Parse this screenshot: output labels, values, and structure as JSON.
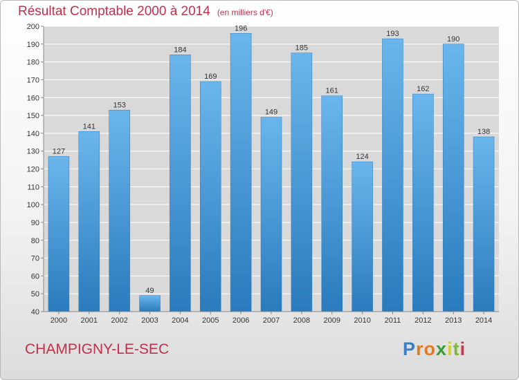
{
  "title": {
    "main": "Résultat Comptable 2000 à 2014",
    "unit": "(en milliers d'€)"
  },
  "commune": "CHAMPIGNY-LE-SEC",
  "logo": {
    "letters": [
      "P",
      "r",
      "o",
      "x",
      "i",
      "t",
      "i"
    ],
    "colors": [
      "#3a7fc4",
      "#e07b23",
      "#e07b23",
      "#3a9a3a",
      "#d4cc2a",
      "#7fb93c",
      "#cc3344"
    ]
  },
  "colors": {
    "bar": "#3d9bde",
    "bar_light": "#6ab6ec",
    "bar_dark": "#2a7bbd",
    "title": "#c0304a"
  },
  "chart_data": {
    "type": "bar",
    "categories": [
      "2000",
      "2001",
      "2002",
      "2003",
      "2004",
      "2005",
      "2006",
      "2007",
      "2008",
      "2009",
      "2010",
      "2011",
      "2012",
      "2013",
      "2014"
    ],
    "values": [
      127,
      141,
      153,
      49,
      184,
      169,
      196,
      149,
      185,
      161,
      124,
      193,
      162,
      190,
      138
    ],
    "ylim": [
      40,
      200
    ],
    "yticks": [
      40,
      50,
      60,
      70,
      80,
      90,
      100,
      110,
      120,
      130,
      140,
      150,
      160,
      170,
      180,
      190,
      200
    ],
    "grid": true,
    "xlabel": "",
    "ylabel": ""
  }
}
